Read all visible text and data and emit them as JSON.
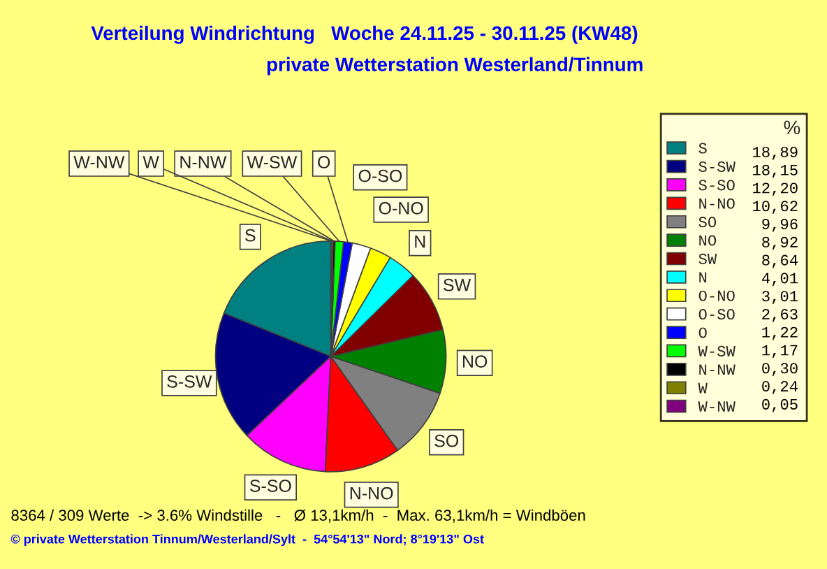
{
  "chart_data": {
    "type": "pie",
    "title": "Verteilung Windrichtung   Woche 24.11.25 - 30.11.25 (KW48)",
    "subtitle": "private Wetterstation Westerland/Tinnum",
    "categories": [
      "S",
      "S-SW",
      "S-SO",
      "N-NO",
      "SO",
      "NO",
      "SW",
      "N",
      "O-NO",
      "O-SO",
      "O",
      "W-SW",
      "N-NW",
      "W",
      "W-NW"
    ],
    "values": [
      18.89,
      18.15,
      12.2,
      10.62,
      9.96,
      8.92,
      8.64,
      4.01,
      3.01,
      2.63,
      1.22,
      1.17,
      0.3,
      0.24,
      0.05
    ],
    "value_labels": [
      "18,89",
      "18,15",
      "12,20",
      "10,62",
      "9,96",
      "8,92",
      "8,64",
      "4,01",
      "3,01",
      "2,63",
      "1,22",
      "1,17",
      "0,30",
      "0,24",
      "0,05"
    ],
    "colors": [
      "#008080",
      "#000080",
      "#ff00ff",
      "#ff0000",
      "#808080",
      "#008000",
      "#800000",
      "#00ffff",
      "#ffff00",
      "#ffffff",
      "#0000ff",
      "#00ff00",
      "#000000",
      "#808000",
      "#800080"
    ],
    "legend": "right",
    "legend_title": "%",
    "annotations": [
      "8364 / 309 Werte  -> 3.6% Windstille   -   Ø 13,1km/h  -  Max. 63,1km/h = Windböen",
      "© private Wetterstation Tinnum/Westerland/Sylt  -  54°54'13\" Nord; 8°19'13\" Ost"
    ]
  }
}
